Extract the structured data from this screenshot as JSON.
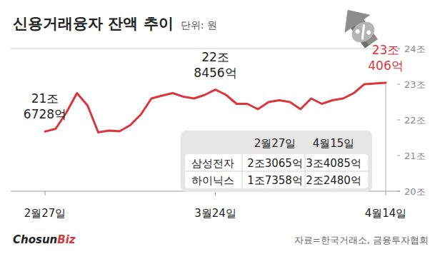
{
  "chart_data": {
    "type": "line",
    "title": "신용거래융자 잔액 추이",
    "subtitle": "단위: 원",
    "categories": [
      "2월27일",
      null,
      null,
      null,
      null,
      null,
      null,
      null,
      null,
      null,
      null,
      null,
      null,
      null,
      null,
      null,
      "3월24일",
      null,
      null,
      null,
      null,
      null,
      null,
      null,
      null,
      null,
      null,
      null,
      null,
      null,
      null,
      null,
      "4월14일"
    ],
    "values": [
      21.6728,
      21.75,
      22.2,
      22.75,
      22.4,
      21.65,
      21.7,
      21.68,
      21.85,
      22.15,
      22.6,
      22.68,
      22.75,
      22.65,
      22.6,
      22.7,
      22.8456,
      22.7,
      22.45,
      22.45,
      22.3,
      22.5,
      22.55,
      22.5,
      22.3,
      22.6,
      22.45,
      22.55,
      22.6,
      22.75,
      23.0,
      23.02,
      23.0406
    ],
    "value_labels": [
      "21조 6728억",
      null,
      null,
      null,
      null,
      null,
      null,
      null,
      null,
      null,
      null,
      null,
      null,
      null,
      null,
      null,
      "22조 8456억",
      null,
      null,
      null,
      null,
      null,
      null,
      null,
      null,
      null,
      null,
      null,
      null,
      null,
      null,
      null,
      "23조 406억"
    ],
    "color": "#d9363e",
    "ylim": [
      20,
      24
    ],
    "yticks": [
      {
        "value": 20,
        "label": "20조"
      },
      {
        "value": 21,
        "label": "21조"
      },
      {
        "value": 22,
        "label": "22조"
      },
      {
        "value": 23,
        "label": "23조"
      },
      {
        "value": 24,
        "label": "24조"
      }
    ],
    "grid": false,
    "table": {
      "header": [
        "2월27일",
        "4월15일"
      ],
      "rows": [
        {
          "label": "삼성전자",
          "cells": [
            "2조3065억",
            "3조4085억"
          ]
        },
        {
          "label": "하이닉스",
          "cells": [
            "1조7358억",
            "2조2480억"
          ]
        }
      ]
    },
    "brand": [
      "Chosun",
      "Biz"
    ],
    "source": "자료=한국거래소, 금융투자협회"
  }
}
